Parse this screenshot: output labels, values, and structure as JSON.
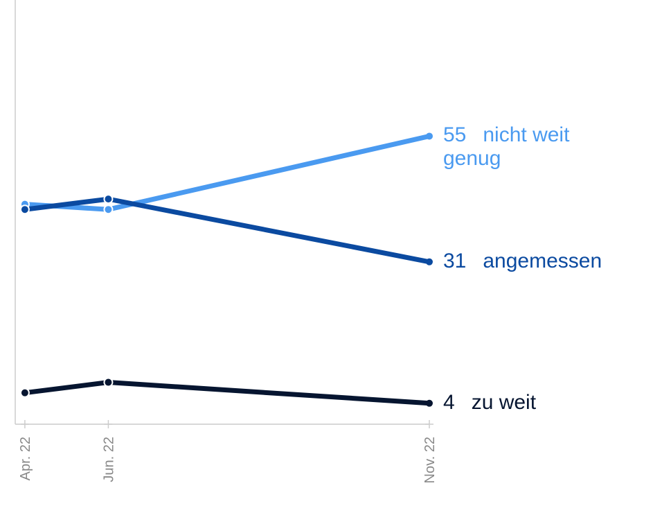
{
  "chart_data": {
    "type": "line",
    "x": [
      4.7,
      6,
      11
    ],
    "xlim": [
      4.55,
      11
    ],
    "xticks": [
      {
        "value": 4.7,
        "label": "Apr. 22"
      },
      {
        "value": 6,
        "label": "Jun. 22"
      },
      {
        "value": 11,
        "label": "Nov. 22"
      }
    ],
    "ylim": [
      0,
      81
    ],
    "series": [
      {
        "name": "nicht weit genug",
        "color": "#4a9af0",
        "values": [
          42,
          41,
          55
        ]
      },
      {
        "name": "angemessen",
        "color": "#0b4aa0",
        "values": [
          41,
          43,
          31
        ]
      },
      {
        "name": "zu weit",
        "color": "#061530",
        "values": [
          6,
          8,
          4
        ]
      }
    ]
  }
}
